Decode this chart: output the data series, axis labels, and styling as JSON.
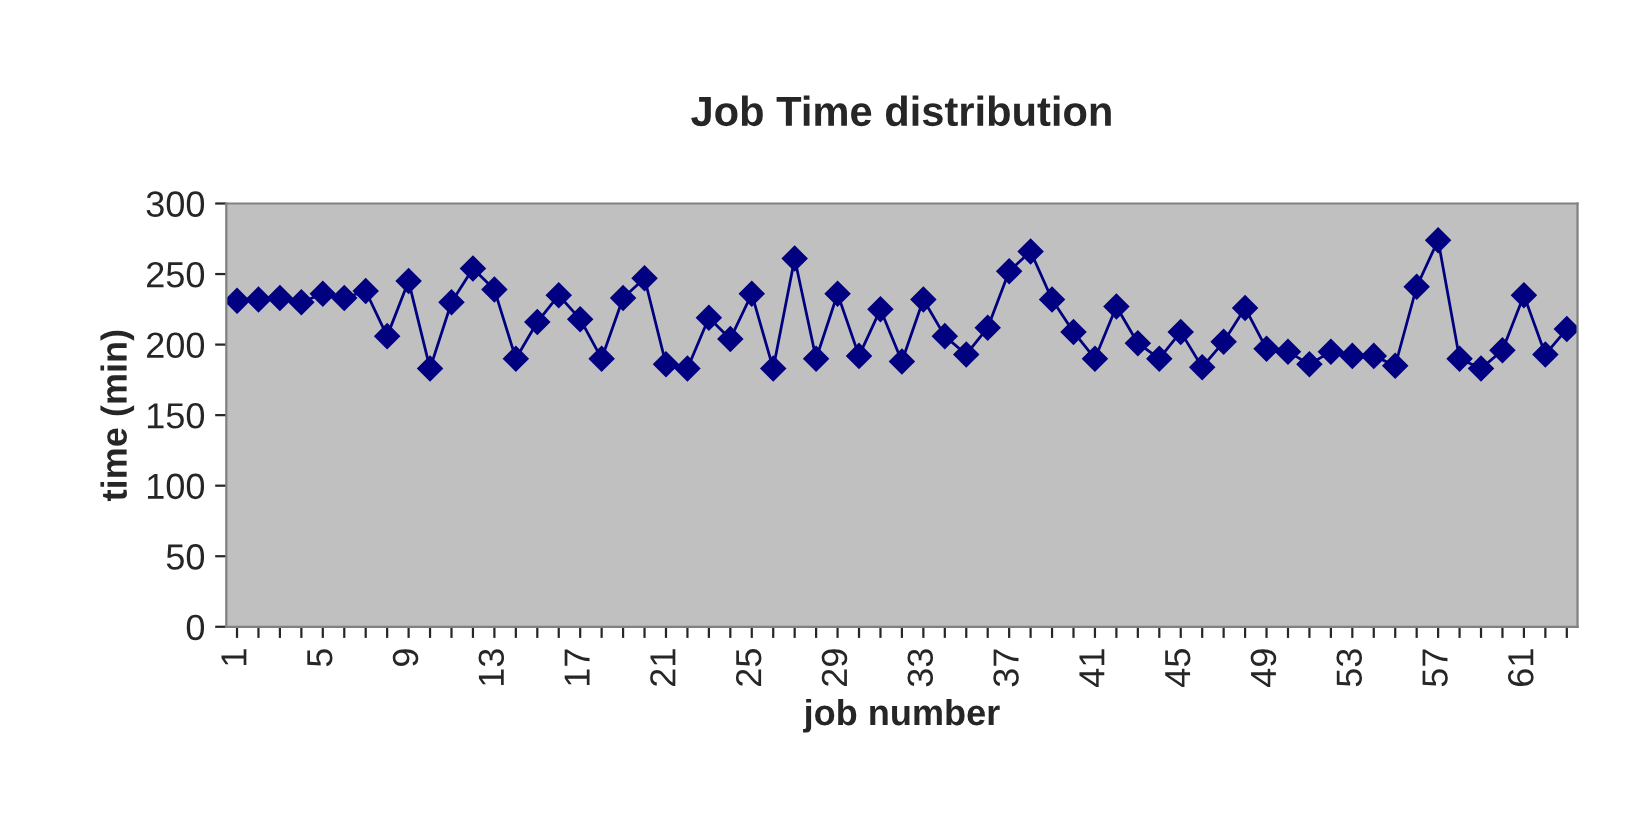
{
  "chart_data": {
    "type": "line",
    "title": "Job Time distribution",
    "xlabel": "job number",
    "ylabel": "time (min)",
    "categories": [
      "1",
      null,
      null,
      null,
      "5",
      null,
      null,
      null,
      "9",
      null,
      null,
      null,
      "13",
      null,
      null,
      null,
      "17",
      null,
      null,
      null,
      "21",
      null,
      null,
      null,
      "25",
      null,
      null,
      null,
      "29",
      null,
      null,
      null,
      "33",
      null,
      null,
      null,
      "37",
      null,
      null,
      null,
      "41",
      null,
      null,
      null,
      "45",
      null,
      null,
      null,
      "49",
      null,
      null,
      null,
      "53",
      null,
      null,
      null,
      "57",
      null,
      null,
      null,
      "61",
      null,
      null
    ],
    "series": [
      {
        "color": "#000080",
        "values": [
          231,
          232,
          233,
          230,
          236,
          233,
          238,
          206,
          245,
          183,
          230,
          254,
          239,
          190,
          216,
          235,
          218,
          190,
          233,
          247,
          186,
          183,
          219,
          204,
          236,
          183,
          261,
          190,
          236,
          192,
          225,
          188,
          232,
          206,
          193,
          212,
          252,
          266,
          232,
          209,
          190,
          227,
          201,
          190,
          209,
          184,
          202,
          226,
          197,
          195,
          186,
          195,
          192,
          192,
          185,
          241,
          274,
          190,
          183,
          196,
          235,
          193,
          211
        ]
      }
    ],
    "ylim": [
      0,
      300
    ],
    "yticks": [
      0,
      50,
      100,
      150,
      200,
      250,
      300
    ],
    "grid": false,
    "legend": false,
    "marker": "diamond",
    "line_style": "solid"
  }
}
